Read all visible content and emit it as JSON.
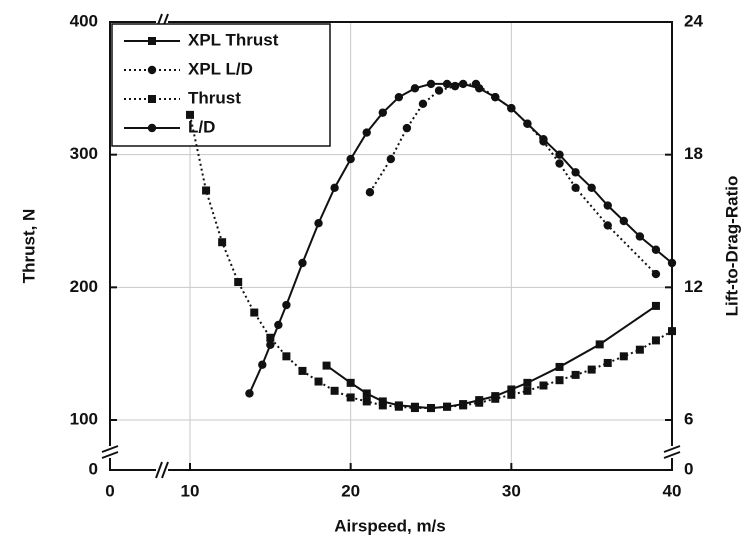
{
  "chart_data": {
    "type": "line",
    "x_label": "Airspeed, m/s",
    "y_label": "Thrust, N",
    "y2_label": "Lift-to-Drag-Ratio",
    "xlim": [
      0,
      40
    ],
    "xticks": [
      0,
      10,
      20,
      30,
      40
    ],
    "xbreak": [
      0,
      10
    ],
    "ylim": [
      0,
      400
    ],
    "yticks": [
      0,
      100,
      200,
      300,
      400
    ],
    "ybreak": [
      0,
      100
    ],
    "y2lim": [
      0,
      24
    ],
    "y2ticks": [
      0,
      6,
      12,
      18,
      24
    ],
    "y2break": [
      0,
      6
    ],
    "grid": true,
    "legend": "upper left",
    "series": [
      {
        "name": "XPL Thrust",
        "color": "#111111",
        "line": "solid",
        "marker": "square",
        "x": [
          18.5,
          20,
          21,
          22,
          23,
          24,
          25,
          26,
          27,
          28,
          29,
          30,
          31,
          33,
          35.5,
          39
        ],
        "values": [
          141,
          128,
          120,
          114,
          111,
          110,
          109,
          110,
          112,
          115,
          118,
          123,
          128,
          140,
          157,
          186
        ]
      },
      {
        "name": "XPL L/D",
        "color": "#111111",
        "line": "dotted",
        "marker": "circle",
        "axis": "y2",
        "x": [
          21.2,
          22.5,
          23.5,
          24.5,
          25.5,
          26.5,
          27.8,
          29,
          30,
          31,
          32,
          33,
          34,
          36,
          39
        ],
        "values": [
          16.3,
          17.8,
          19.2,
          20.3,
          20.9,
          21.1,
          21.2,
          20.6,
          20.1,
          19.4,
          18.6,
          17.6,
          16.5,
          14.8,
          12.6
        ]
      },
      {
        "name": "Thrust",
        "color": "#111111",
        "line": "dotted",
        "marker": "square",
        "x": [
          10,
          11,
          12,
          13,
          14,
          15,
          16,
          17,
          18,
          19,
          20,
          21,
          22,
          23,
          24,
          25,
          26,
          27,
          28,
          29,
          30,
          31,
          32,
          33,
          34,
          35,
          36,
          37,
          38,
          39,
          40
        ],
        "values": [
          330,
          273,
          234,
          204,
          181,
          162,
          148,
          137,
          129,
          122,
          117,
          114,
          111,
          110,
          109,
          109,
          110,
          111,
          113,
          116,
          119,
          122,
          126,
          130,
          134,
          138,
          143,
          148,
          153,
          160,
          167
        ]
      },
      {
        "name": "L/D",
        "color": "#111111",
        "line": "solid",
        "marker": "circle",
        "axis": "y2",
        "x": [
          13.7,
          14.5,
          15,
          15.5,
          16,
          17,
          18,
          19,
          20,
          21,
          22,
          23,
          24,
          25,
          26,
          27,
          28,
          29,
          30,
          31,
          32,
          33,
          34,
          35,
          36,
          37,
          38,
          39,
          40
        ],
        "values": [
          7.2,
          8.5,
          9.4,
          10.3,
          11.2,
          13.1,
          14.9,
          16.5,
          17.8,
          19.0,
          19.9,
          20.6,
          21.0,
          21.2,
          21.2,
          21.2,
          21.0,
          20.6,
          20.1,
          19.4,
          18.7,
          18.0,
          17.2,
          16.5,
          15.7,
          15.0,
          14.3,
          13.7,
          13.1
        ]
      }
    ]
  }
}
